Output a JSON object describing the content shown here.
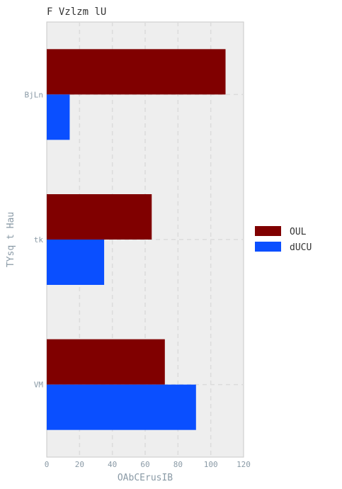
{
  "chart_data": {
    "type": "bar",
    "orientation": "horizontal",
    "title": "F  Vzlzm  lU",
    "xlabel": "OAbCErusIB",
    "ylabel": "TYsq t Hau",
    "categories": [
      "BjLn",
      "tk",
      "VM"
    ],
    "series": [
      {
        "name": "OUL",
        "color": "#800000",
        "values": [
          109,
          64,
          72
        ]
      },
      {
        "name": "dUCU",
        "color": "#0A4FFF",
        "values": [
          14,
          35,
          91
        ]
      }
    ],
    "xlim": [
      0,
      120
    ],
    "xticks": [
      0,
      20,
      40,
      60,
      80,
      100,
      120
    ],
    "grid": true,
    "legend_position": "right",
    "background": "#EEEEEE"
  }
}
